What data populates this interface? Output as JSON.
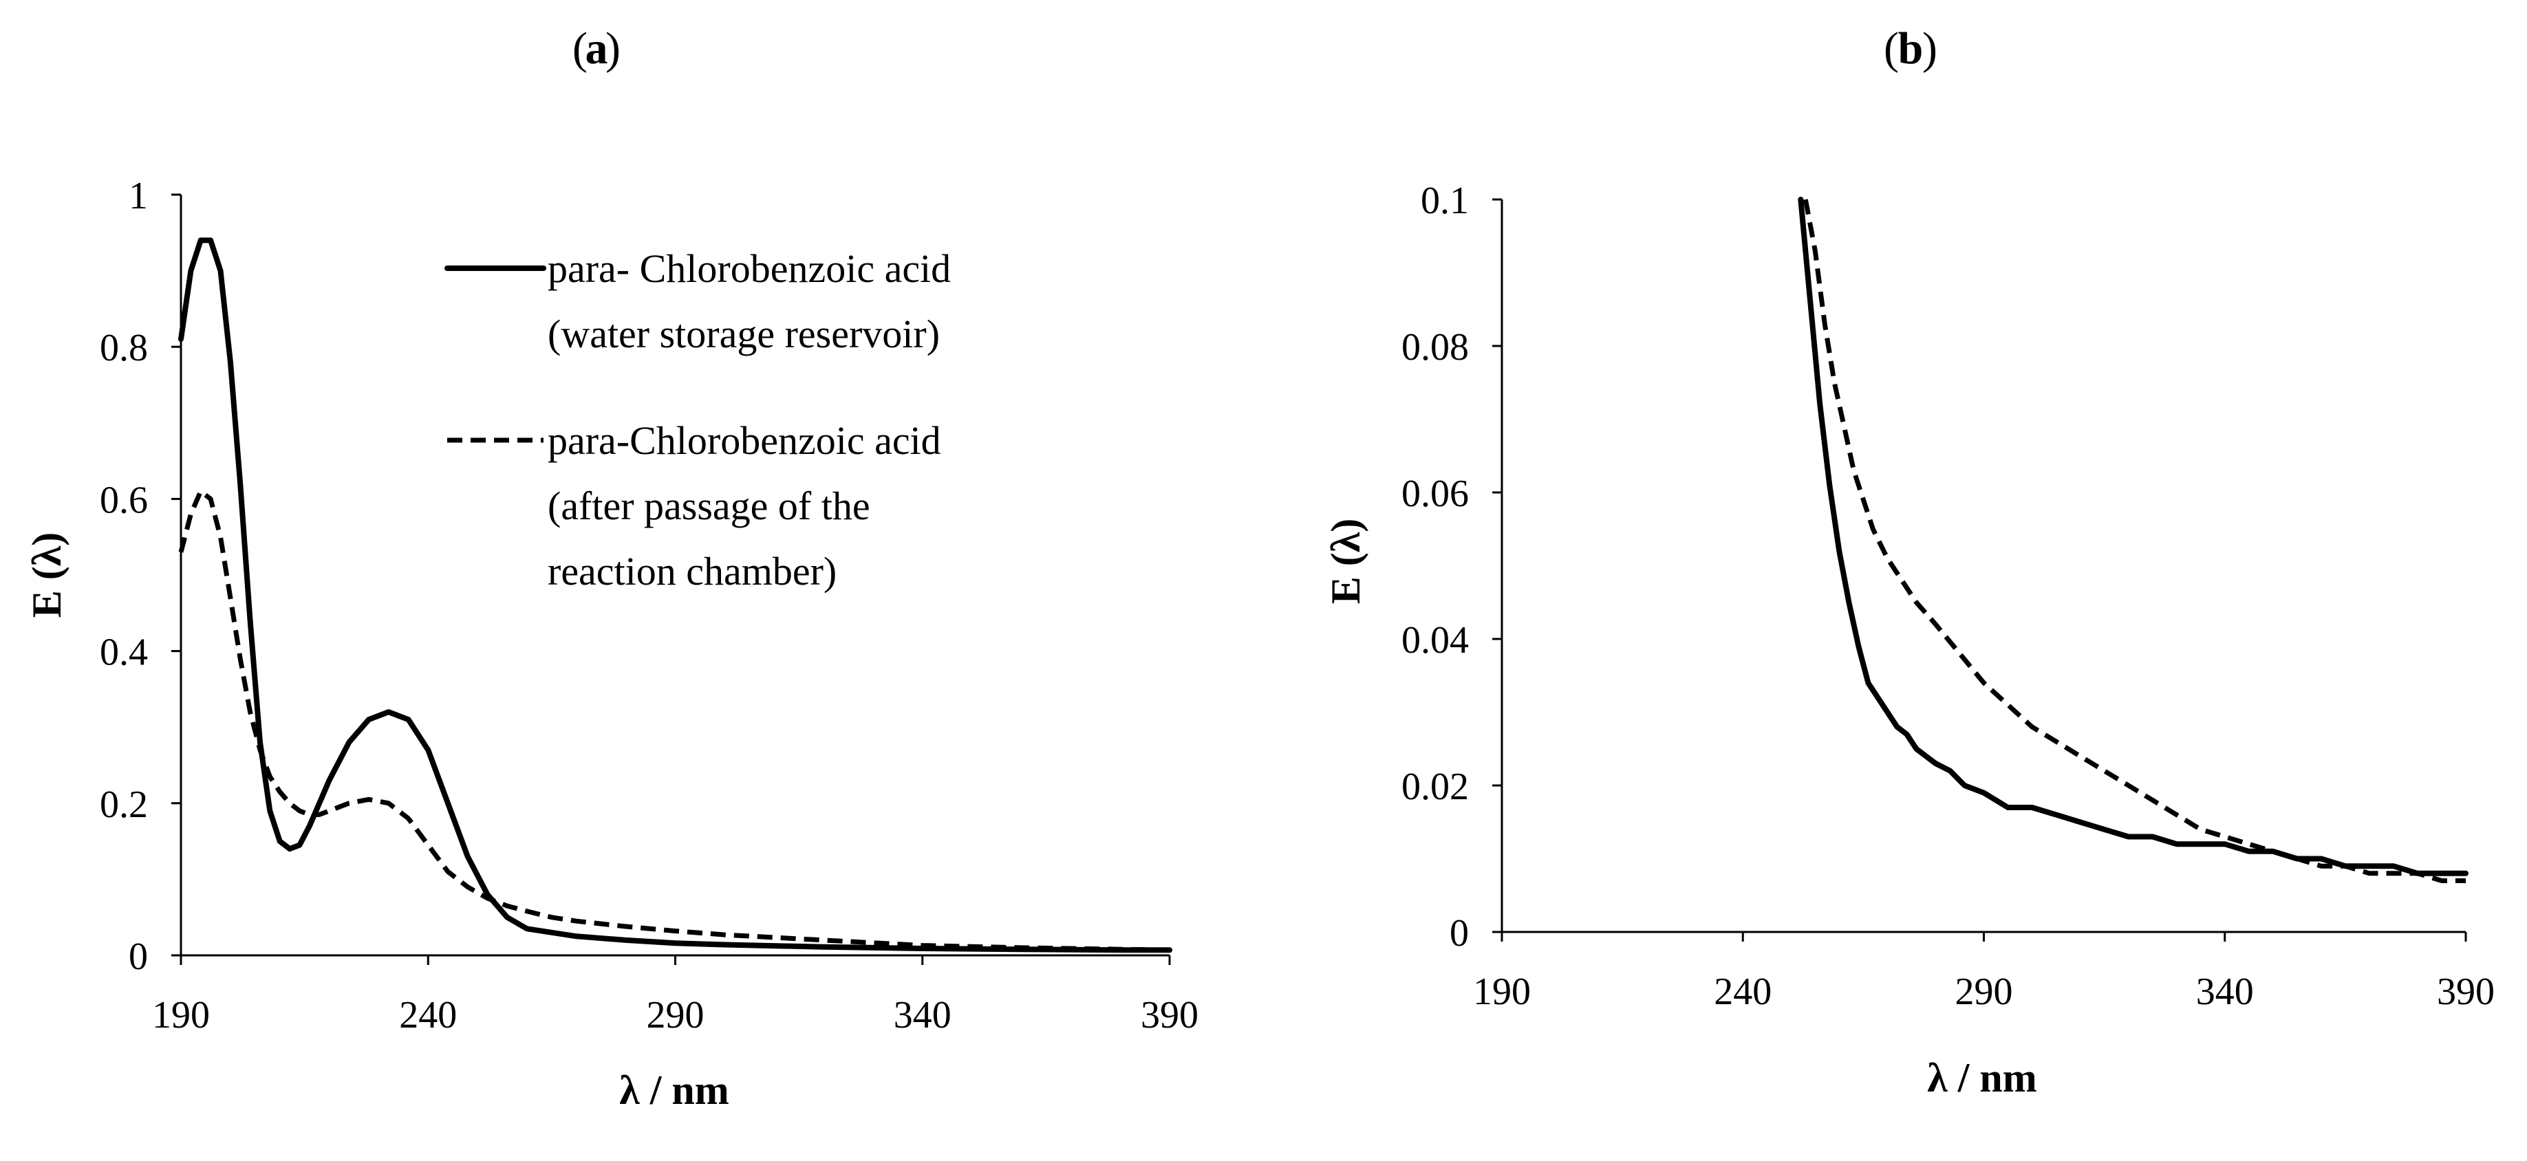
{
  "chart_data": [
    {
      "panel_label": "a",
      "type": "line",
      "xlabel": "λ / nm",
      "ylabel": "E (λ)",
      "xlim": [
        190,
        390
      ],
      "ylim": [
        0,
        1
      ],
      "xticks": [
        "190",
        "240",
        "290",
        "340",
        "390"
      ],
      "yticks": [
        "0",
        "0.2",
        "0.4",
        "0.6",
        "0.8",
        "1"
      ],
      "grid": false,
      "legend_position": "top-right",
      "series": [
        {
          "name": "para- Chlorobenzoic acid",
          "name_line2": "(water storage reservoir)",
          "style": "solid",
          "color": "#000000",
          "x": [
            190,
            192,
            194,
            196,
            198,
            200,
            202,
            204,
            206,
            208,
            210,
            212,
            214,
            216,
            218,
            220,
            224,
            228,
            232,
            236,
            240,
            244,
            248,
            252,
            256,
            260,
            265,
            270,
            280,
            290,
            300,
            320,
            340,
            360,
            380,
            390
          ],
          "y": [
            0.81,
            0.9,
            0.94,
            0.94,
            0.9,
            0.78,
            0.62,
            0.44,
            0.28,
            0.19,
            0.15,
            0.14,
            0.145,
            0.17,
            0.2,
            0.23,
            0.28,
            0.31,
            0.32,
            0.31,
            0.27,
            0.2,
            0.13,
            0.08,
            0.05,
            0.035,
            0.03,
            0.025,
            0.02,
            0.016,
            0.014,
            0.011,
            0.009,
            0.008,
            0.007,
            0.007
          ]
        },
        {
          "name": "para-Chlorobenzoic acid",
          "name_line2": "(after passage of the",
          "name_line3": "reaction chamber)",
          "style": "dashed",
          "color": "#000000",
          "x": [
            190,
            192,
            194,
            196,
            198,
            200,
            202,
            204,
            206,
            208,
            210,
            212,
            214,
            216,
            218,
            220,
            224,
            228,
            232,
            236,
            240,
            244,
            248,
            252,
            256,
            260,
            265,
            270,
            280,
            290,
            300,
            320,
            340,
            360,
            380,
            390
          ],
          "y": [
            0.53,
            0.58,
            0.61,
            0.6,
            0.55,
            0.47,
            0.39,
            0.32,
            0.27,
            0.235,
            0.215,
            0.2,
            0.19,
            0.185,
            0.185,
            0.19,
            0.2,
            0.205,
            0.2,
            0.18,
            0.145,
            0.11,
            0.09,
            0.075,
            0.065,
            0.058,
            0.05,
            0.045,
            0.038,
            0.032,
            0.027,
            0.02,
            0.013,
            0.01,
            0.008,
            0.007
          ]
        }
      ]
    },
    {
      "panel_label": "b",
      "type": "line",
      "xlabel": "λ / nm",
      "ylabel": "E (λ)",
      "xlim": [
        190,
        390
      ],
      "ylim": [
        0,
        0.1
      ],
      "xticks": [
        "190",
        "240",
        "290",
        "340",
        "390"
      ],
      "yticks": [
        "0",
        "0.02",
        "0.04",
        "0.06",
        "0.08",
        "0.1"
      ],
      "grid": false,
      "series": [
        {
          "style": "solid",
          "color": "#000000",
          "x": [
            252,
            254,
            256,
            258,
            260,
            262,
            264,
            266,
            268,
            270,
            272,
            274,
            276,
            278,
            280,
            283,
            286,
            290,
            295,
            300,
            305,
            310,
            315,
            320,
            325,
            330,
            335,
            340,
            345,
            350,
            355,
            360,
            365,
            370,
            375,
            380,
            385,
            390
          ],
          "y": [
            0.1,
            0.086,
            0.072,
            0.061,
            0.052,
            0.045,
            0.039,
            0.034,
            0.032,
            0.03,
            0.028,
            0.027,
            0.025,
            0.024,
            0.023,
            0.022,
            0.02,
            0.019,
            0.017,
            0.017,
            0.016,
            0.015,
            0.014,
            0.013,
            0.013,
            0.012,
            0.012,
            0.012,
            0.011,
            0.011,
            0.01,
            0.01,
            0.009,
            0.009,
            0.009,
            0.008,
            0.008,
            0.008
          ]
        },
        {
          "style": "dashed",
          "color": "#000000",
          "x": [
            253,
            255,
            257,
            259,
            261,
            263,
            265,
            267,
            270,
            273,
            276,
            280,
            285,
            290,
            295,
            300,
            305,
            310,
            315,
            320,
            325,
            330,
            335,
            340,
            345,
            350,
            355,
            360,
            365,
            370,
            375,
            380,
            385,
            390
          ],
          "y": [
            0.1,
            0.093,
            0.083,
            0.075,
            0.069,
            0.063,
            0.059,
            0.055,
            0.051,
            0.048,
            0.045,
            0.042,
            0.038,
            0.034,
            0.031,
            0.028,
            0.026,
            0.024,
            0.022,
            0.02,
            0.018,
            0.016,
            0.014,
            0.013,
            0.012,
            0.011,
            0.01,
            0.009,
            0.009,
            0.008,
            0.008,
            0.008,
            0.007,
            0.007
          ]
        }
      ]
    }
  ]
}
